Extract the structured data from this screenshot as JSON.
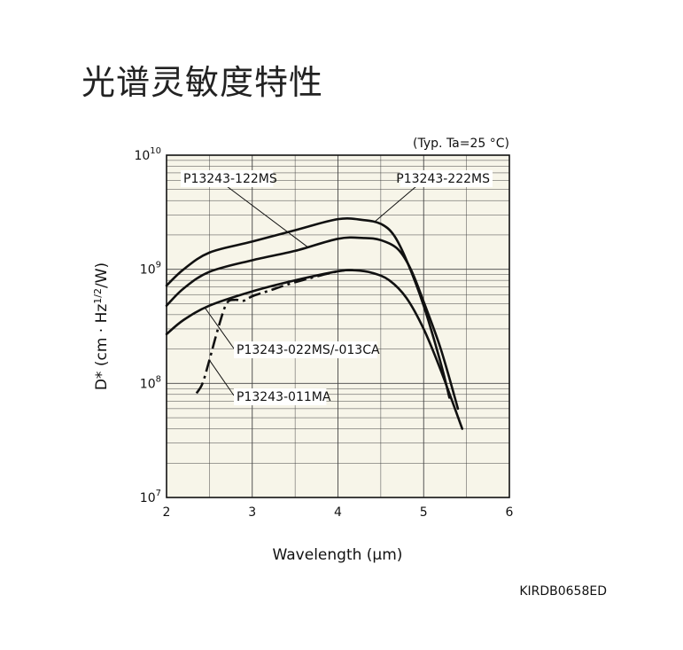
{
  "page": {
    "title": "光谱灵敏度特性",
    "figure_code": "KIRDB0658ED"
  },
  "chart_data": {
    "type": "line",
    "condition": "(Typ. Ta=25 °C)",
    "xlabel": "Wavelength (µm)",
    "ylabel": "D* (cm · Hz1/2/W)",
    "ylabel_parts": {
      "pre": "D* (cm · Hz",
      "sup": "1/2",
      "post": "/W)"
    },
    "xlim": [
      2,
      6
    ],
    "ylim": [
      10000000,
      10000000000
    ],
    "yscale": "log",
    "grid": true,
    "x_ticks": [
      2,
      3,
      4,
      5,
      6
    ],
    "x_tick_labels": [
      "2",
      "3",
      "4",
      "5",
      "6"
    ],
    "y_ticks": [
      {
        "value": 10000000,
        "base": "10",
        "exp": "7"
      },
      {
        "value": 100000000,
        "base": "10",
        "exp": "8"
      },
      {
        "value": 1000000000,
        "base": "10",
        "exp": "9"
      },
      {
        "value": 10000000000,
        "base": "10",
        "exp": "10"
      }
    ],
    "series": [
      {
        "name": "P13243-222MS",
        "style": "solid",
        "x": [
          2.0,
          2.2,
          2.5,
          3.0,
          3.5,
          4.0,
          4.3,
          4.5,
          4.65,
          4.8,
          5.0,
          5.2,
          5.3
        ],
        "y": [
          720000000,
          1000000000,
          1400000000,
          1750000000,
          2200000000,
          2750000000,
          2700000000,
          2500000000,
          2000000000,
          1200000000,
          480000000,
          150000000,
          75000000
        ]
      },
      {
        "name": "P13243-122MS",
        "style": "solid",
        "x": [
          2.0,
          2.2,
          2.5,
          3.0,
          3.5,
          4.0,
          4.3,
          4.5,
          4.7,
          4.85,
          5.0,
          5.2,
          5.4
        ],
        "y": [
          480000000,
          680000000,
          950000000,
          1200000000,
          1450000000,
          1850000000,
          1880000000,
          1800000000,
          1500000000,
          1000000000,
          520000000,
          200000000,
          60000000
        ]
      },
      {
        "name": "P13243-022MS/-013CA",
        "style": "solid",
        "x": [
          2.0,
          2.2,
          2.5,
          3.0,
          3.5,
          4.0,
          4.2,
          4.4,
          4.6,
          4.8,
          5.0,
          5.2,
          5.45
        ],
        "y": [
          270000000,
          360000000,
          480000000,
          640000000,
          800000000,
          960000000,
          980000000,
          930000000,
          800000000,
          560000000,
          300000000,
          130000000,
          40000000
        ]
      },
      {
        "name": "P13243-011MA",
        "style": "dashdot",
        "x": [
          2.35,
          2.42,
          2.5,
          2.6,
          2.7,
          2.8,
          2.9,
          3.0,
          3.2,
          3.5,
          4.0,
          4.2
        ],
        "y": [
          82000000,
          100000000,
          160000000,
          300000000,
          500000000,
          540000000,
          530000000,
          580000000,
          650000000,
          770000000,
          960000000,
          980000000
        ]
      }
    ],
    "annotations": [
      {
        "text": "P13243-122MS",
        "series": "P13243-122MS",
        "anchor_x": 3.65,
        "anchor_y": 1500000000
      },
      {
        "text": "P13243-222MS",
        "series": "P13243-222MS",
        "anchor_x": 4.42,
        "anchor_y": 2650000000
      },
      {
        "text": "P13243-022MS/-013CA",
        "series": "P13243-022MS/-013CA",
        "anchor_x": 2.45,
        "anchor_y": 460000000
      },
      {
        "text": "P13243-011MA",
        "series": "P13243-011MA",
        "anchor_x": 2.5,
        "anchor_y": 160000000
      }
    ]
  }
}
